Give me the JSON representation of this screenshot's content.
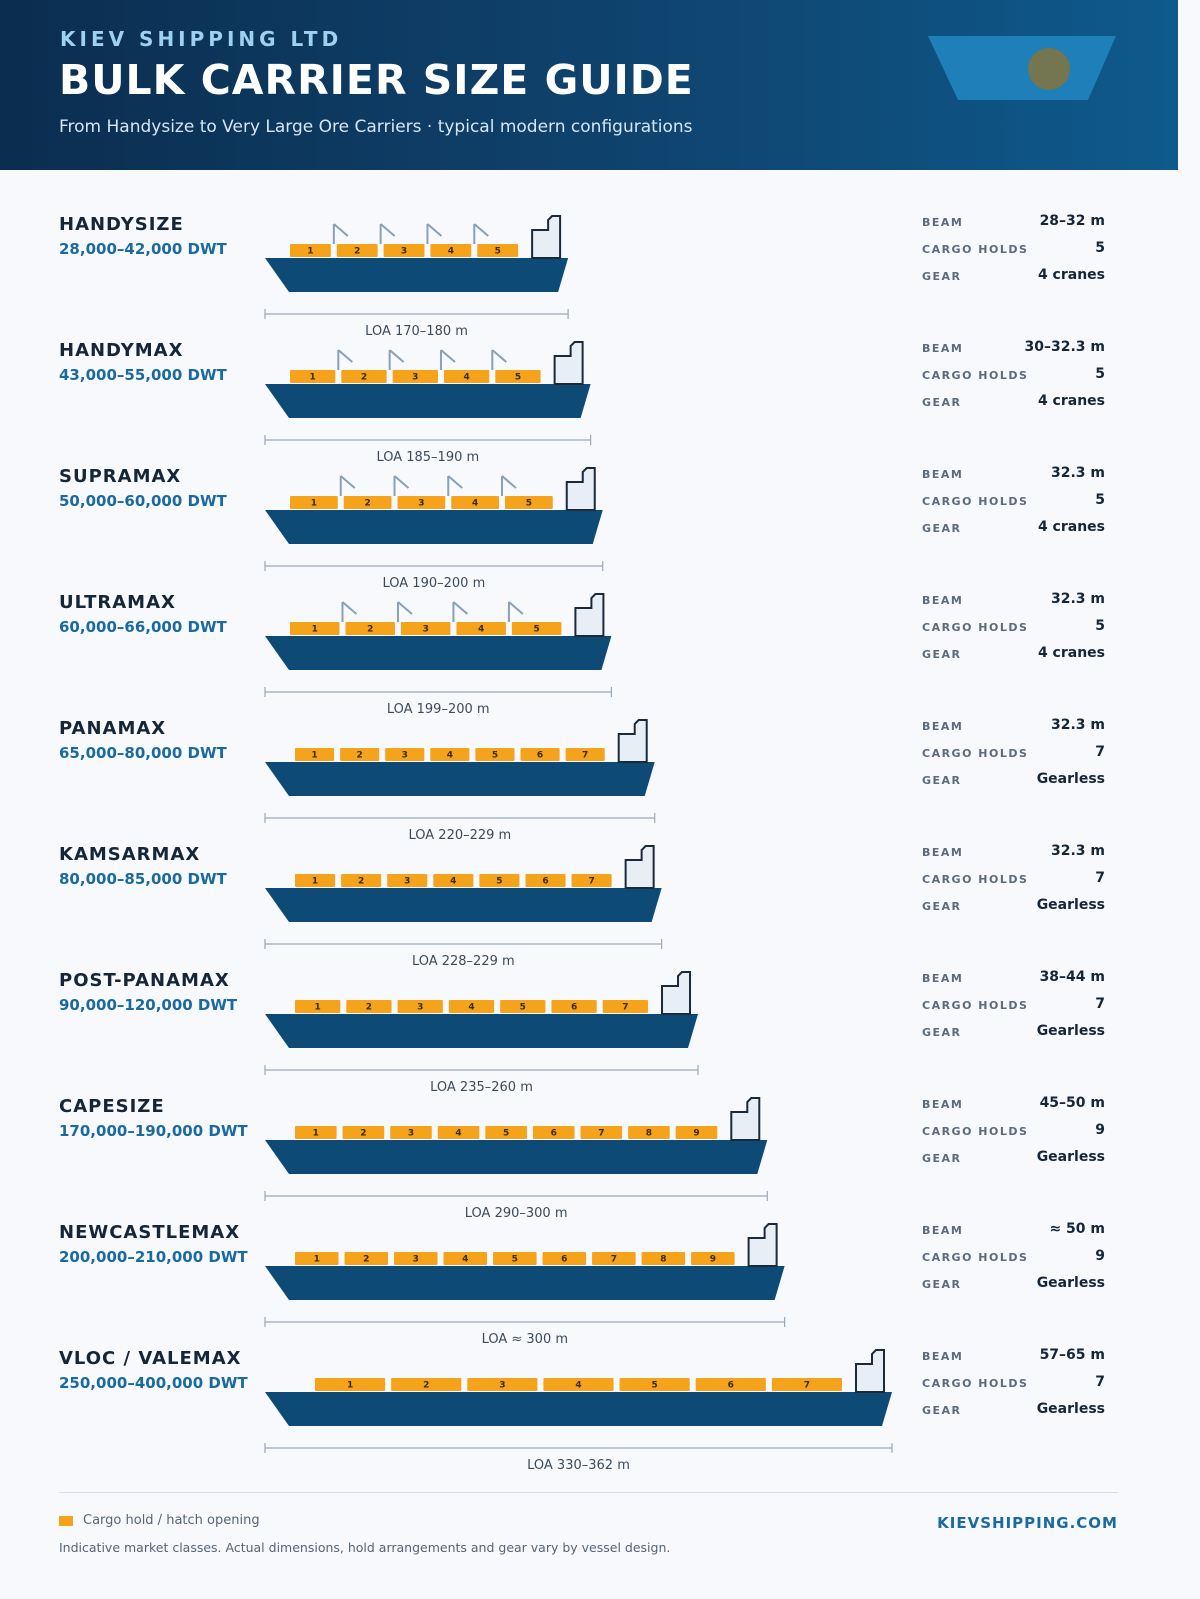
{
  "header": {
    "brand": "KIEV SHIPPING LTD",
    "title": "BULK CARRIER SIZE GUIDE",
    "subtitle": "From Handysize to Very Large Ore Carriers · typical modern configurations"
  },
  "spec_labels": {
    "beam": "BEAM",
    "holds": "CARGO HOLDS",
    "gear": "GEAR"
  },
  "colors": {
    "hull": "#0e4a76",
    "hold": "#f5a31a",
    "superstructure": "#e8eef5",
    "crane": "#8aa0b8",
    "accent": "#1a6aa0"
  },
  "vessels": [
    {
      "name": "HANDYSIZE",
      "dwt": "28,000–42,000 DWT",
      "beam": "28–32 m",
      "holds": 5,
      "holds_label": "5",
      "gear": "4 cranes",
      "cranes": 4,
      "loa": "LOA 170–180 m",
      "loa_m": 175
    },
    {
      "name": "HANDYMAX",
      "dwt": "43,000–55,000 DWT",
      "beam": "30–32.3 m",
      "holds": 5,
      "holds_label": "5",
      "gear": "4 cranes",
      "cranes": 4,
      "loa": "LOA 185–190 m",
      "loa_m": 188
    },
    {
      "name": "SUPRAMAX",
      "dwt": "50,000–60,000 DWT",
      "beam": "32.3 m",
      "holds": 5,
      "holds_label": "5",
      "gear": "4 cranes",
      "cranes": 4,
      "loa": "LOA 190–200 m",
      "loa_m": 195
    },
    {
      "name": "ULTRAMAX",
      "dwt": "60,000–66,000 DWT",
      "beam": "32.3 m",
      "holds": 5,
      "holds_label": "5",
      "gear": "4 cranes",
      "cranes": 4,
      "loa": "LOA 199–200 m",
      "loa_m": 200
    },
    {
      "name": "PANAMAX",
      "dwt": "65,000–80,000 DWT",
      "beam": "32.3 m",
      "holds": 7,
      "holds_label": "7",
      "gear": "Gearless",
      "cranes": 0,
      "loa": "LOA 220–229 m",
      "loa_m": 225
    },
    {
      "name": "KAMSARMAX",
      "dwt": "80,000–85,000 DWT",
      "beam": "32.3 m",
      "holds": 7,
      "holds_label": "7",
      "gear": "Gearless",
      "cranes": 0,
      "loa": "LOA 228–229 m",
      "loa_m": 229
    },
    {
      "name": "POST-PANAMAX",
      "dwt": "90,000–120,000 DWT",
      "beam": "38–44 m",
      "holds": 7,
      "holds_label": "7",
      "gear": "Gearless",
      "cranes": 0,
      "loa": "LOA 235–260 m",
      "loa_m": 250
    },
    {
      "name": "CAPESIZE",
      "dwt": "170,000–190,000 DWT",
      "beam": "45–50 m",
      "holds": 9,
      "holds_label": "9",
      "gear": "Gearless",
      "cranes": 0,
      "loa": "LOA 290–300 m",
      "loa_m": 290
    },
    {
      "name": "NEWCASTLEMAX",
      "dwt": "200,000–210,000 DWT",
      "beam": "≈ 50 m",
      "holds": 9,
      "holds_label": "9",
      "gear": "Gearless",
      "cranes": 0,
      "loa": "LOA ≈ 300 m",
      "loa_m": 300
    },
    {
      "name": "VLOC / VALEMAX",
      "dwt": "250,000–400,000 DWT",
      "beam": "57–65 m",
      "holds": 7,
      "holds_label": "7",
      "gear": "Gearless",
      "cranes": 0,
      "loa": "LOA 330–362 m",
      "loa_m": 362
    }
  ],
  "footer": {
    "legend": "Cargo hold / hatch opening",
    "note": "Indicative market classes. Actual dimensions, hold arrangements and gear vary by vessel design.",
    "site": "KIEVSHIPPING.COM"
  }
}
